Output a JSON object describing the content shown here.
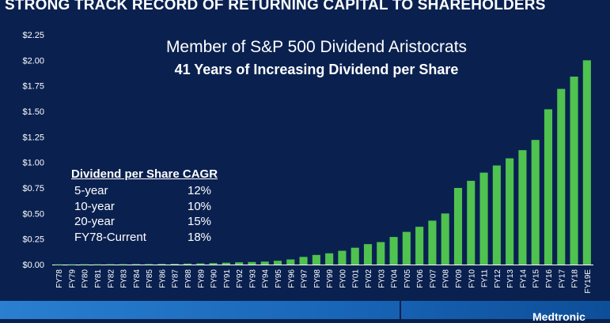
{
  "header": {
    "title": "STRONG TRACK RECORD OF RETURNING CAPITAL TO SHAREHOLDERS"
  },
  "callout": {
    "line1": "Member of S&P 500 Dividend Aristocrats",
    "line2": "41 Years of Increasing Dividend per Share"
  },
  "cagr": {
    "heading": "Dividend per Share CAGR",
    "rows": [
      {
        "period": "5-year",
        "value": "12%"
      },
      {
        "period": "10-year",
        "value": "10%"
      },
      {
        "period": "20-year",
        "value": "15%"
      },
      {
        "period": "FY78-Current",
        "value": "18%"
      }
    ]
  },
  "footer": {
    "logo_text": "Medtronic"
  },
  "colors": {
    "background": "#0a2150",
    "bar": "#4fc24f",
    "axis": "#ffffff",
    "footer_band": "#2a7fd0"
  },
  "chart_data": {
    "type": "bar",
    "title": "",
    "xlabel": "",
    "ylabel": "",
    "ylim": [
      0,
      2.25
    ],
    "yticks": [
      "$0.00",
      "$0.25",
      "$0.50",
      "$0.75",
      "$1.00",
      "$1.25",
      "$1.50",
      "$1.75",
      "$2.00",
      "$2.25"
    ],
    "grid": false,
    "categories": [
      "FY78",
      "FY79",
      "FY80",
      "FY81",
      "FY82",
      "FY83",
      "FY84",
      "FY85",
      "FY86",
      "FY87",
      "FY88",
      "FY89",
      "FY90",
      "FY91",
      "FY92",
      "FY93",
      "FY94",
      "FY95",
      "FY96",
      "FY97",
      "FY98",
      "FY99",
      "FY00",
      "FY01",
      "FY02",
      "FY03",
      "FY04",
      "FY05",
      "FY06",
      "FY07",
      "FY08",
      "FY09",
      "FY10",
      "FY11",
      "FY12",
      "FY13",
      "FY14",
      "FY15",
      "FY16",
      "FY17",
      "FY18",
      "FY19E"
    ],
    "values": [
      0.002,
      0.002,
      0.003,
      0.003,
      0.004,
      0.004,
      0.005,
      0.005,
      0.006,
      0.007,
      0.009,
      0.011,
      0.014,
      0.018,
      0.022,
      0.025,
      0.029,
      0.037,
      0.05,
      0.075,
      0.094,
      0.11,
      0.135,
      0.165,
      0.2,
      0.22,
      0.27,
      0.32,
      0.37,
      0.43,
      0.5,
      0.75,
      0.82,
      0.9,
      0.97,
      1.04,
      1.12,
      1.22,
      1.52,
      1.72,
      1.84,
      2.0
    ]
  }
}
